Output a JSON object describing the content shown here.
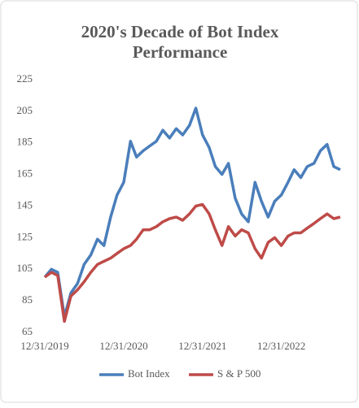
{
  "chart_data": {
    "type": "line",
    "title": [
      "2020's Decade of Bot Index",
      "Performance"
    ],
    "x": [
      "2019-12-31",
      "2020-01-31",
      "2020-02-29",
      "2020-03-31",
      "2020-04-30",
      "2020-05-31",
      "2020-06-30",
      "2020-07-31",
      "2020-08-31",
      "2020-09-30",
      "2020-10-31",
      "2020-11-30",
      "2020-12-31",
      "2021-01-31",
      "2021-02-28",
      "2021-03-31",
      "2021-04-30",
      "2021-05-31",
      "2021-06-30",
      "2021-07-31",
      "2021-08-31",
      "2021-09-30",
      "2021-10-31",
      "2021-11-30",
      "2021-12-31",
      "2022-01-31",
      "2022-02-28",
      "2022-03-31",
      "2022-04-30",
      "2022-05-31",
      "2022-06-30",
      "2022-07-31",
      "2022-08-31",
      "2022-09-30",
      "2022-10-31",
      "2022-11-30",
      "2022-12-31",
      "2023-01-31",
      "2023-02-28",
      "2023-03-31",
      "2023-04-30",
      "2023-05-31",
      "2023-06-30",
      "2023-07-31",
      "2023-08-31",
      "2023-09-30"
    ],
    "series": [
      {
        "name": "Bot Index",
        "color": "#4a7ebb",
        "values": [
          100,
          105,
          103,
          75,
          90,
          96,
          108,
          114,
          124,
          120,
          138,
          152,
          160,
          186,
          176,
          180,
          183,
          186,
          193,
          188,
          194,
          190,
          196,
          207,
          190,
          182,
          170,
          165,
          172,
          150,
          140,
          135,
          160,
          148,
          138,
          148,
          152,
          160,
          168,
          163,
          170,
          172,
          180,
          184,
          170,
          168
        ]
      },
      {
        "name": "S & P 500",
        "color": "#be4b48",
        "values": [
          100,
          103,
          101,
          72,
          88,
          92,
          97,
          103,
          108,
          110,
          112,
          115,
          118,
          120,
          124,
          130,
          130,
          132,
          135,
          137,
          138,
          136,
          140,
          145,
          146,
          140,
          130,
          120,
          132,
          126,
          130,
          128,
          118,
          112,
          122,
          125,
          120,
          126,
          128,
          128,
          131,
          134,
          137,
          140,
          137,
          138
        ]
      }
    ],
    "xlim": [
      "2019-12-31",
      "2023-09-30"
    ],
    "xticks": [
      {
        "value": "2019-12-31",
        "label": "12/31/2019"
      },
      {
        "value": "2020-12-31",
        "label": "12/31/2020"
      },
      {
        "value": "2021-12-31",
        "label": "12/31/2021"
      },
      {
        "value": "2022-12-31",
        "label": "12/31/2022"
      }
    ],
    "ylim": [
      65,
      225
    ],
    "yticks": [
      65,
      85,
      105,
      125,
      145,
      165,
      185,
      205,
      225
    ],
    "grid": false,
    "legend": "bottom"
  }
}
